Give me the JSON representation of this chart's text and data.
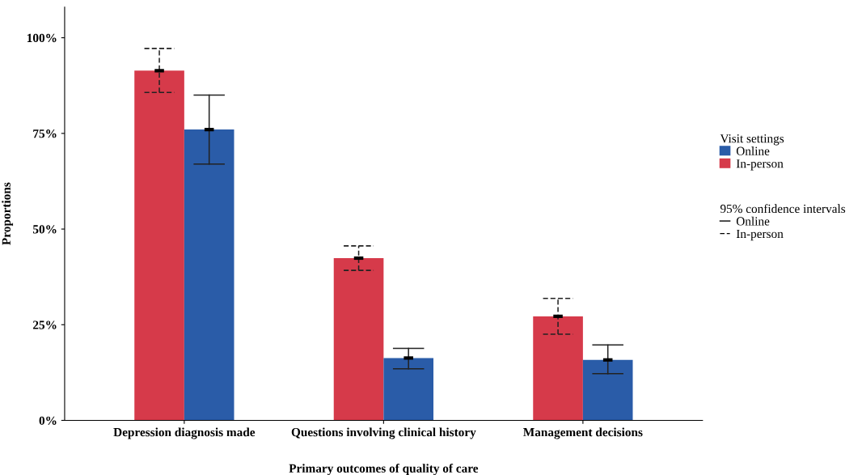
{
  "chart_data": {
    "type": "bar",
    "xlabel": "Primary outcomes of quality of care",
    "ylabel": "Proportions",
    "categories": [
      "Depression diagnosis made",
      "Questions involving clinical history",
      "Management decisions"
    ],
    "series": [
      {
        "name": "In-person",
        "color": "#d63a4a",
        "values": [
          91.4,
          42.4,
          27.2
        ],
        "errors": [
          [
            85.7,
            97.2
          ],
          [
            39.2,
            45.6
          ],
          [
            22.5,
            31.9
          ]
        ],
        "line_style": "dashed"
      },
      {
        "name": "Online",
        "color": "#2a5ca8",
        "values": [
          76.0,
          16.3,
          15.8
        ],
        "errors": [
          [
            67.0,
            85.0
          ],
          [
            13.5,
            18.8
          ],
          [
            12.2,
            19.7
          ]
        ],
        "line_style": "solid"
      }
    ],
    "ylim": [
      0,
      108
    ],
    "yticks": [
      {
        "value": 0,
        "label": "0%"
      },
      {
        "value": 25,
        "label": "25%"
      },
      {
        "value": 50,
        "label": "50%"
      },
      {
        "value": 75,
        "label": "75%"
      },
      {
        "value": 100,
        "label": "100%"
      }
    ],
    "legend_title": "Visit settings",
    "annotations": [
      "95% confidence intervals"
    ],
    "legend": "right",
    "grid": false
  }
}
